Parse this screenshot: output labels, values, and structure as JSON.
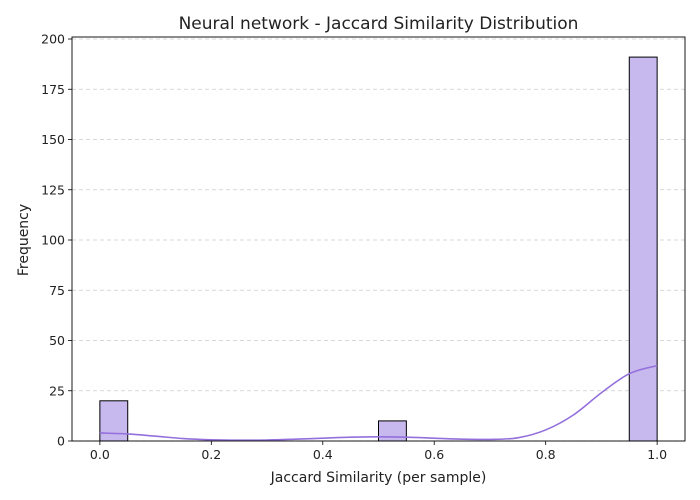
{
  "chart_data": {
    "type": "bar",
    "title": "Neural network - Jaccard Similarity Distribution",
    "xlabel": "Jaccard Similarity (per sample)",
    "ylabel": "Frequency",
    "xlim": [
      -0.05,
      1.05
    ],
    "ylim": [
      0,
      201
    ],
    "x_ticks": [
      "0.0",
      "0.2",
      "0.4",
      "0.6",
      "0.8",
      "1.0"
    ],
    "y_ticks": [
      "0",
      "25",
      "50",
      "75",
      "100",
      "125",
      "150",
      "175",
      "200"
    ],
    "grid": "y-dashed",
    "bin_width": 0.05,
    "bins": [
      {
        "start": 0.0,
        "count": 20
      },
      {
        "start": 0.5,
        "count": 10
      },
      {
        "start": 0.95,
        "count": 191
      }
    ],
    "kde": {
      "x": [
        0.0,
        0.05,
        0.1,
        0.15,
        0.2,
        0.25,
        0.3,
        0.35,
        0.4,
        0.45,
        0.5,
        0.55,
        0.6,
        0.65,
        0.7,
        0.75,
        0.8,
        0.85,
        0.9,
        0.95,
        1.0
      ],
      "y": [
        4.0,
        3.5,
        2.4,
        1.2,
        0.6,
        0.4,
        0.5,
        0.9,
        1.4,
        1.9,
        2.1,
        1.9,
        1.4,
        0.9,
        0.8,
        1.6,
        5.5,
        13.0,
        24.0,
        33.5,
        37.5
      ]
    },
    "colors": {
      "bar_fill": "#c7b8ee",
      "bar_edge": "#000000",
      "kde_line": "#9370db",
      "grid": "#cccccc"
    }
  }
}
